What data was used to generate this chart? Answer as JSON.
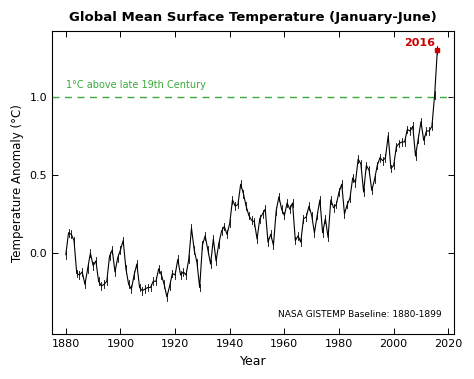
{
  "title": "Global Mean Surface Temperature (January-June)",
  "xlabel": "Year",
  "ylabel": "Temperature Anomaly (°C)",
  "baseline_label": "1°C above late 19th Century",
  "baseline_y": 1.0,
  "footnote": "NASA GISTEMP Baseline: 1880-1899",
  "highlight_year": 2016,
  "highlight_label": "2016",
  "highlight_color": "#cc0000",
  "line_color": "black",
  "baseline_color": "#3aaa3a",
  "years": [
    1880,
    1881,
    1882,
    1883,
    1884,
    1885,
    1886,
    1887,
    1888,
    1889,
    1890,
    1891,
    1892,
    1893,
    1894,
    1895,
    1896,
    1897,
    1898,
    1899,
    1900,
    1901,
    1902,
    1903,
    1904,
    1905,
    1906,
    1907,
    1908,
    1909,
    1910,
    1911,
    1912,
    1913,
    1914,
    1915,
    1916,
    1917,
    1918,
    1919,
    1920,
    1921,
    1922,
    1923,
    1924,
    1925,
    1926,
    1927,
    1928,
    1929,
    1930,
    1931,
    1932,
    1933,
    1934,
    1935,
    1936,
    1937,
    1938,
    1939,
    1940,
    1941,
    1942,
    1943,
    1944,
    1945,
    1946,
    1947,
    1948,
    1949,
    1950,
    1951,
    1952,
    1953,
    1954,
    1955,
    1956,
    1957,
    1958,
    1959,
    1960,
    1961,
    1962,
    1963,
    1964,
    1965,
    1966,
    1967,
    1968,
    1969,
    1970,
    1971,
    1972,
    1973,
    1974,
    1975,
    1976,
    1977,
    1978,
    1979,
    1980,
    1981,
    1982,
    1983,
    1984,
    1985,
    1986,
    1987,
    1988,
    1989,
    1990,
    1991,
    1992,
    1993,
    1994,
    1995,
    1996,
    1997,
    1998,
    1999,
    2000,
    2001,
    2002,
    2003,
    2004,
    2005,
    2006,
    2007,
    2008,
    2009,
    2010,
    2011,
    2012,
    2013,
    2014,
    2015,
    2016
  ],
  "anomalies": [
    -0.01,
    0.13,
    0.12,
    0.08,
    -0.13,
    -0.14,
    -0.12,
    -0.2,
    -0.1,
    0.0,
    -0.08,
    -0.05,
    -0.18,
    -0.21,
    -0.2,
    -0.18,
    -0.02,
    0.02,
    -0.12,
    -0.03,
    0.02,
    0.08,
    -0.1,
    -0.2,
    -0.23,
    -0.14,
    -0.07,
    -0.22,
    -0.24,
    -0.23,
    -0.22,
    -0.22,
    -0.18,
    -0.18,
    -0.1,
    -0.14,
    -0.2,
    -0.28,
    -0.21,
    -0.13,
    -0.14,
    -0.04,
    -0.14,
    -0.12,
    -0.14,
    -0.04,
    0.16,
    0.02,
    -0.06,
    -0.22,
    0.05,
    0.11,
    0.02,
    -0.07,
    0.09,
    -0.05,
    0.06,
    0.14,
    0.17,
    0.12,
    0.19,
    0.34,
    0.3,
    0.31,
    0.44,
    0.38,
    0.3,
    0.24,
    0.21,
    0.2,
    0.09,
    0.22,
    0.25,
    0.28,
    0.07,
    0.12,
    0.05,
    0.27,
    0.36,
    0.28,
    0.24,
    0.32,
    0.28,
    0.32,
    0.08,
    0.11,
    0.07,
    0.22,
    0.23,
    0.3,
    0.24,
    0.13,
    0.24,
    0.34,
    0.13,
    0.22,
    0.1,
    0.34,
    0.29,
    0.31,
    0.39,
    0.44,
    0.25,
    0.31,
    0.35,
    0.48,
    0.45,
    0.6,
    0.57,
    0.39,
    0.56,
    0.53,
    0.4,
    0.47,
    0.56,
    0.61,
    0.59,
    0.61,
    0.75,
    0.54,
    0.56,
    0.68,
    0.7,
    0.71,
    0.71,
    0.79,
    0.78,
    0.81,
    0.62,
    0.73,
    0.84,
    0.72,
    0.78,
    0.78,
    0.81,
    1.01,
    1.3
  ],
  "xlim": [
    1875,
    2022
  ],
  "ylim": [
    -0.52,
    1.42
  ],
  "xticks": [
    1880,
    1900,
    1920,
    1940,
    1960,
    1980,
    2000,
    2020
  ],
  "yticks": [
    0.0,
    0.5,
    1.0
  ],
  "bg_color": "#ffffff",
  "fig_bg_color": "#ffffff"
}
